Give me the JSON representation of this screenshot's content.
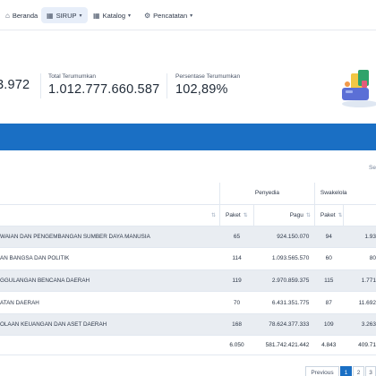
{
  "nav": {
    "items": [
      {
        "label": "Beranda",
        "icon": "home-icon"
      },
      {
        "label": "SIRUP",
        "icon": "grid-icon"
      },
      {
        "label": "Katalog",
        "icon": "grid-icon"
      },
      {
        "label": "Pencatatan",
        "icon": "gear-icon"
      }
    ]
  },
  "summary": {
    "partial_value": "3.972",
    "total_label": "Total Terumumkan",
    "total_value": "1.012.777.660.587",
    "pct_label": "Persentase Terumumkan",
    "pct_value": "102,89%"
  },
  "search_hint": "Se",
  "table": {
    "group_headers": {
      "penyedia": "Penyedia",
      "swakelola": "Swakelola"
    },
    "sub_headers": {
      "paket": "Paket",
      "pagu": "Pagu"
    },
    "rows": [
      {
        "name": "WAIAN DAN PENGEMBANGAN SUMBER DAYA MANUSIA",
        "p_paket": "65",
        "p_pagu": "924.150.070",
        "s_paket": "94",
        "s_pagu": "1.93"
      },
      {
        "name": "AN BANGSA DAN POLITIK",
        "p_paket": "114",
        "p_pagu": "1.093.565.570",
        "s_paket": "60",
        "s_pagu": "80"
      },
      {
        "name": "GGULANGAN BENCANA DAERAH",
        "p_paket": "119",
        "p_pagu": "2.970.859.375",
        "s_paket": "115",
        "s_pagu": "1.771"
      },
      {
        "name": "ATAN DAERAH",
        "p_paket": "70",
        "p_pagu": "6.431.351.775",
        "s_paket": "87",
        "s_pagu": "11.692"
      },
      {
        "name": "OLAAN KEUANGAN DAN ASET DAERAH",
        "p_paket": "168",
        "p_pagu": "78.624.377.333",
        "s_paket": "109",
        "s_pagu": "3.263"
      }
    ],
    "total": {
      "p_paket": "6.050",
      "p_pagu": "581.742.421.442",
      "s_paket": "4.843",
      "s_pagu": "409.71"
    }
  },
  "pagination": {
    "previous": "Previous",
    "pages": [
      "1",
      "2",
      "3"
    ]
  },
  "colors": {
    "accent": "#1a6fc4",
    "row_alt": "#e9edf2"
  }
}
